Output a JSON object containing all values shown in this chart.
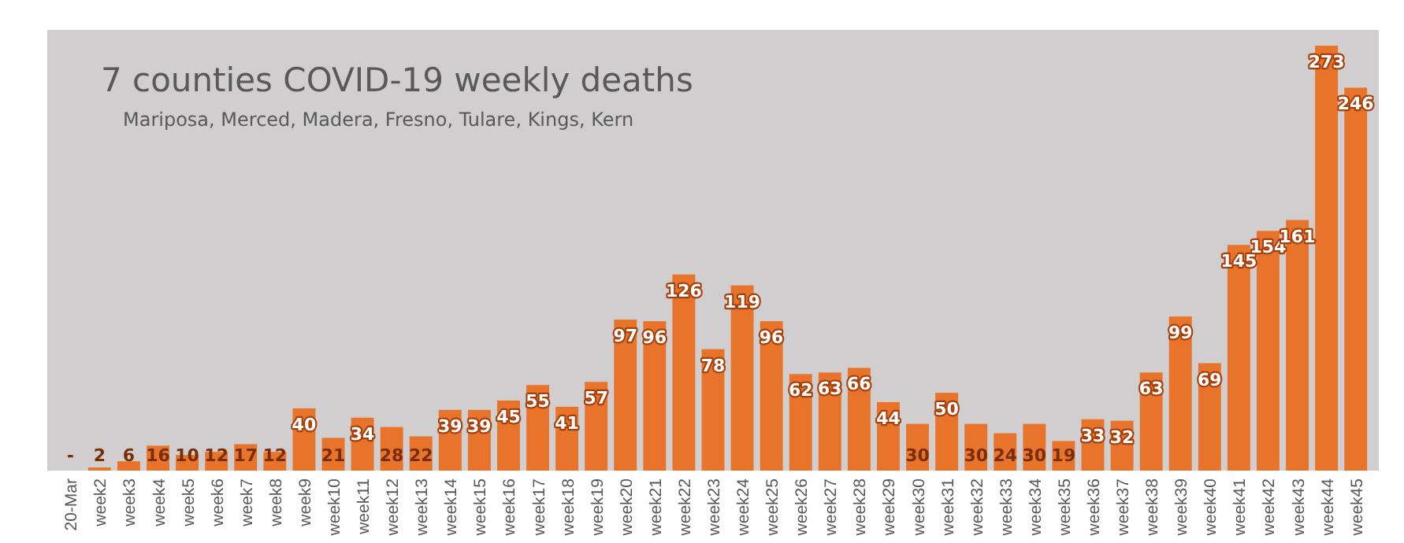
{
  "chart_data": {
    "type": "bar",
    "title": "7 counties COVID-19 weekly deaths",
    "subtitle": "Mariposa, Merced, Madera, Fresno, Tulare, Kings, Kern",
    "categories": [
      "20-Mar",
      "week2",
      "week3",
      "week4",
      "week5",
      "week6",
      "week7",
      "week8",
      "week9",
      "week10",
      "week11",
      "week12",
      "week13",
      "week14",
      "week15",
      "week16",
      "week17",
      "week18",
      "week19",
      "week20",
      "week21",
      "week22",
      "week23",
      "week24",
      "week25",
      "week26",
      "week27",
      "week28",
      "week29",
      "week30",
      "week31",
      "week32",
      "week33",
      "week34",
      "week35",
      "week36",
      "week37",
      "week38",
      "week39",
      "week40",
      "week41",
      "week42",
      "week43",
      "week44",
      "week45"
    ],
    "values": [
      0,
      2,
      6,
      16,
      10,
      12,
      17,
      12,
      40,
      21,
      34,
      28,
      22,
      39,
      39,
      45,
      55,
      41,
      57,
      97,
      96,
      126,
      78,
      119,
      96,
      62,
      63,
      66,
      44,
      30,
      50,
      30,
      24,
      30,
      19,
      33,
      32,
      63,
      99,
      69,
      145,
      154,
      161,
      273,
      246
    ],
    "value_labels": [
      "-",
      "2",
      "6",
      "16",
      "10",
      "12",
      "17",
      "12",
      "40",
      "21",
      "34",
      "28",
      "22",
      "39",
      "39",
      "45",
      "55",
      "41",
      "57",
      "97",
      "96",
      "126",
      "78",
      "119",
      "96",
      "62",
      "63",
      "66",
      "44",
      "30",
      "50",
      "30",
      "24",
      "30",
      "19",
      "33",
      "32",
      "63",
      "99",
      "69",
      "145",
      "154",
      "161",
      "273",
      "246"
    ],
    "color": "#e8742c"
  }
}
